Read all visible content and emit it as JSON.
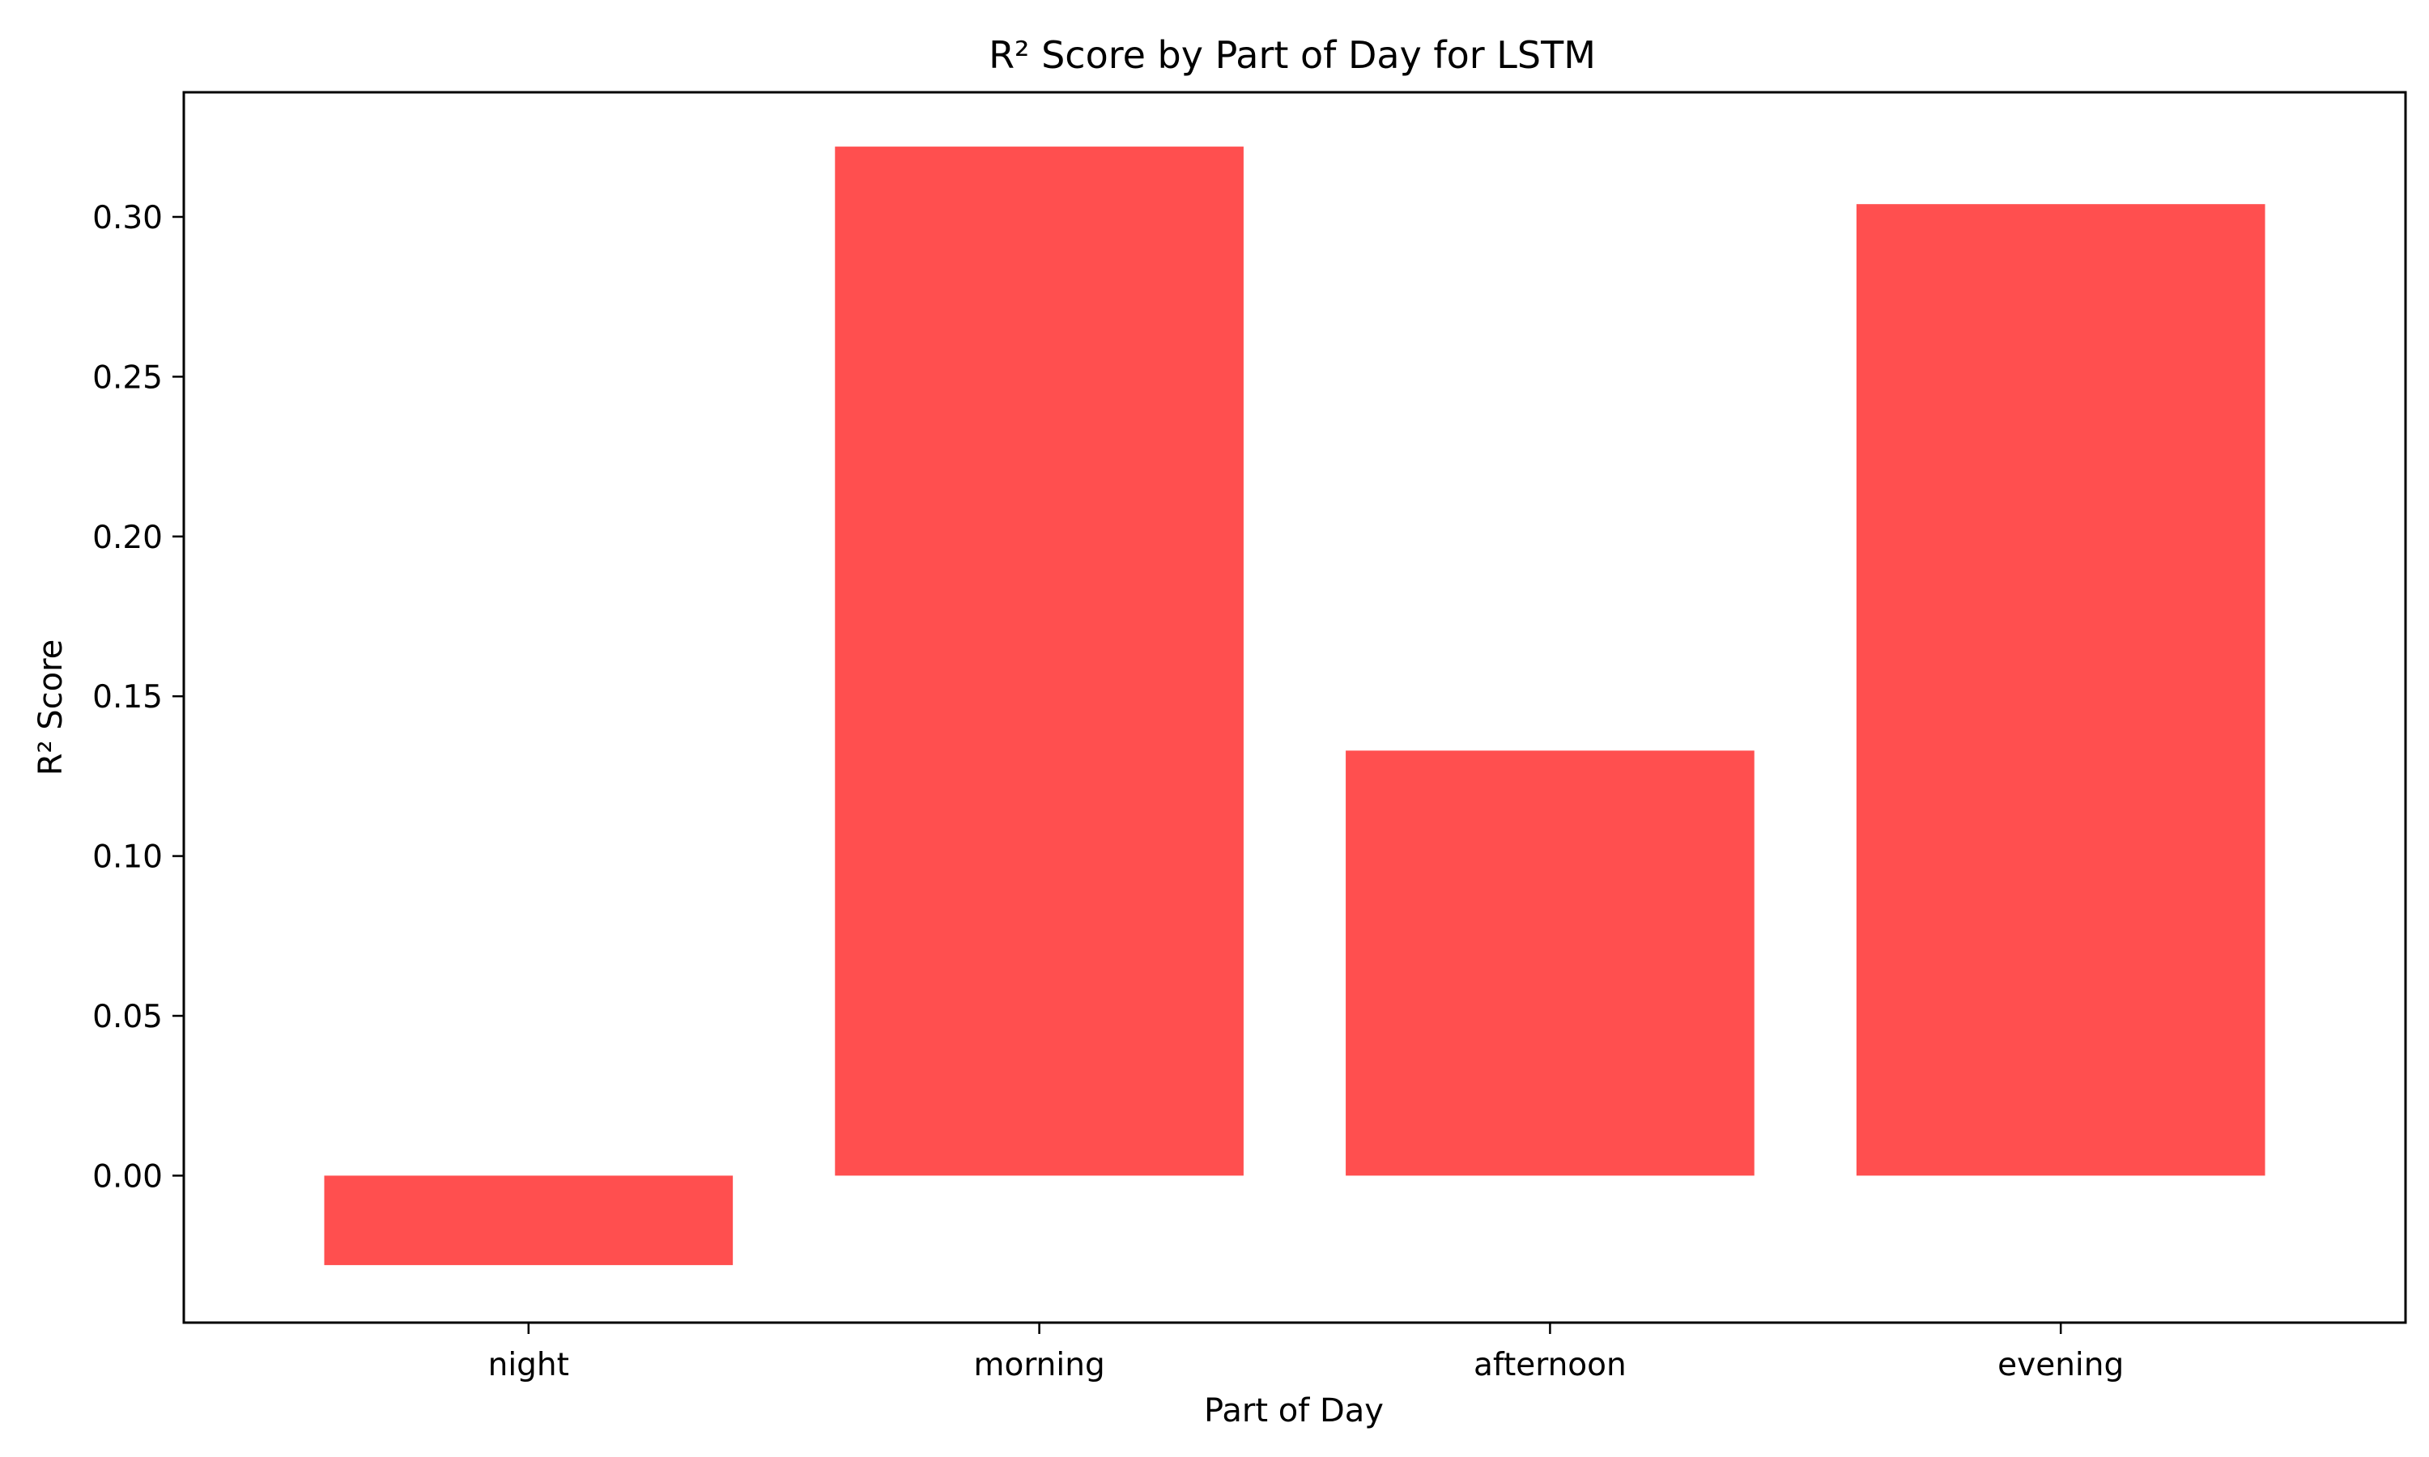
{
  "chart_data": {
    "type": "bar",
    "title": "R² Score by Part of Day for LSTM",
    "xlabel": "Part of Day",
    "ylabel": "R² Score",
    "categories": [
      "night",
      "morning",
      "afternoon",
      "evening"
    ],
    "values": [
      -0.028,
      0.322,
      0.133,
      0.304
    ],
    "ylim": [
      -0.046,
      0.339
    ],
    "yticks": [
      "0.00",
      "0.05",
      "0.10",
      "0.15",
      "0.20",
      "0.25",
      "0.30"
    ],
    "ytick_values": [
      0.0,
      0.05,
      0.1,
      0.15,
      0.2,
      0.25,
      0.3
    ],
    "bar_color": "#ff4f4f",
    "grid": false,
    "legend": "none"
  }
}
